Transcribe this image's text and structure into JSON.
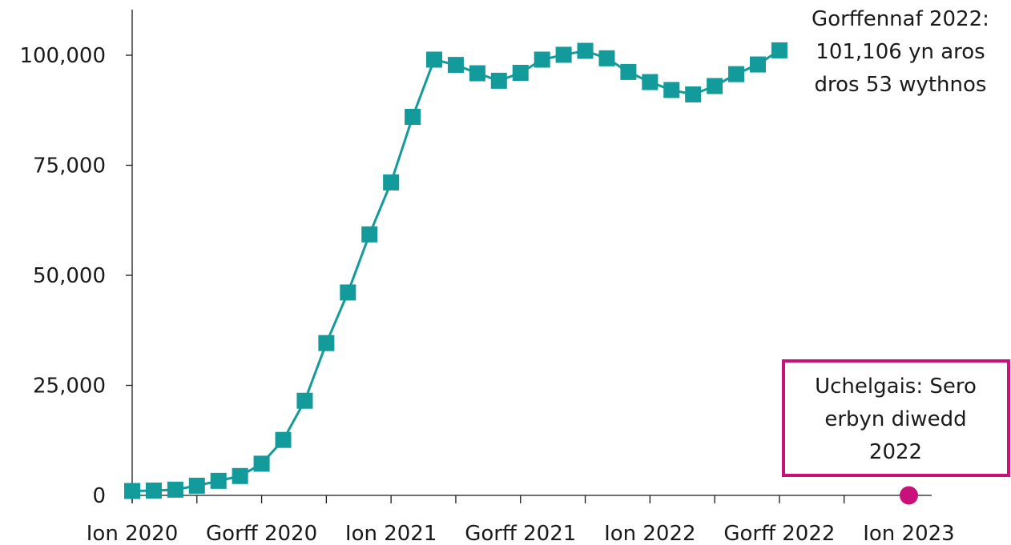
{
  "colors": {
    "series": "#139a9a",
    "target": "#c8117a",
    "text": "#1a1a1a"
  },
  "chart_data": {
    "type": "line",
    "title": "",
    "xlabel": "",
    "ylabel": "",
    "ylim": [
      0,
      100000
    ],
    "grid": false,
    "x_tick_labels": [
      "Ion 2020",
      "Gorff 2020",
      "Ion 2021",
      "Gorff 2021",
      "Ion 2022",
      "Gorff 2022",
      "Ion 2023"
    ],
    "y_tick_labels": [
      "0",
      "25,000",
      "50,000",
      "75,000",
      "100,000"
    ],
    "y_ticks": [
      0,
      25000,
      50000,
      75000,
      100000
    ],
    "series": [
      {
        "marker": "square",
        "x": [
          "2020-01",
          "2020-02",
          "2020-03",
          "2020-04",
          "2020-05",
          "2020-06",
          "2020-07",
          "2020-08",
          "2020-09",
          "2020-10",
          "2020-11",
          "2020-12",
          "2021-01",
          "2021-02",
          "2021-03",
          "2021-04",
          "2021-05",
          "2021-06",
          "2021-07",
          "2021-08",
          "2021-09",
          "2021-10",
          "2021-11",
          "2021-12",
          "2022-01",
          "2022-02",
          "2022-03",
          "2022-04",
          "2022-05",
          "2022-06",
          "2022-07"
        ],
        "values": [
          1000,
          1100,
          1300,
          2200,
          3300,
          4400,
          7200,
          12600,
          21500,
          34600,
          46100,
          59300,
          71100,
          86000,
          99000,
          97800,
          95900,
          94200,
          96000,
          99000,
          100100,
          101000,
          99300,
          96200,
          93900,
          92100,
          91100,
          93000,
          95700,
          97900,
          101106
        ]
      }
    ],
    "target_point": {
      "x": "2023-01",
      "value": 0
    },
    "annotations": [
      {
        "lines": [
          "Gorffennaf 2022:",
          "101,106 yn aros",
          "dros 53 wythnos"
        ]
      },
      {
        "lines": [
          "Uchelgais: Sero",
          "erbyn diwedd",
          "2022"
        ],
        "boxed": true
      }
    ]
  }
}
